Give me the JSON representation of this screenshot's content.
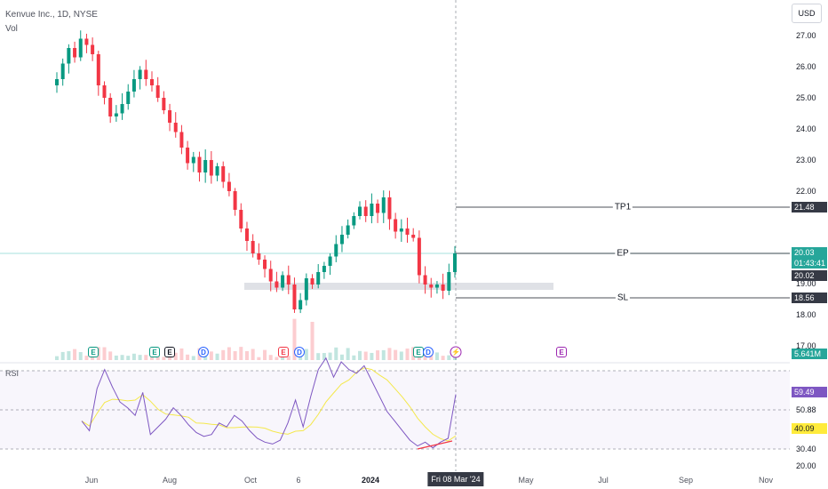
{
  "header": {
    "symbol": "Kenvue Inc., 1D, NYSE",
    "volume_label": "Vol",
    "currency": "USD"
  },
  "price_scale": {
    "ticks": [
      "27.00",
      "26.00",
      "25.00",
      "24.00",
      "23.00",
      "22.00",
      "19.00",
      "18.00",
      "17.00"
    ],
    "tp_tag": "21.48",
    "ep_tag": "20.03",
    "countdown": "01:43:41",
    "close_tag": "20.02",
    "sl_tag": "18.56",
    "vol_tag": "5.641M"
  },
  "drawings": {
    "tp_label": "TP1",
    "ep_label": "EP",
    "sl_label": "SL"
  },
  "rsi": {
    "label": "RSI",
    "ticks": [
      "50.88",
      "30.40",
      "20.00"
    ],
    "value_tag": "59.49",
    "ma_tag": "40.09"
  },
  "time_axis": {
    "labels": [
      "Jun",
      "Aug",
      "Oct",
      "6",
      "2024",
      "May",
      "Jul",
      "Sep",
      "Nov"
    ],
    "cursor_date": "Fri 08 Mar '24"
  },
  "events": [
    "E",
    "E",
    "E",
    "D",
    "E",
    "D",
    "E",
    "E",
    "E"
  ],
  "colors": {
    "up": "#089981",
    "down": "#f23645",
    "rsi": "#7e57c2",
    "rsi_ma": "#f4e84c",
    "accent": "#2962ff"
  },
  "chart_data": {
    "type": "candlestick",
    "title": "Kenvue Inc., 1D, NYSE",
    "ylim": [
      17,
      27.3
    ],
    "close": [
      25.6,
      26.1,
      26.6,
      26.3,
      26.9,
      26.7,
      26.4,
      25.4,
      25.0,
      24.4,
      24.5,
      24.8,
      25.2,
      25.6,
      25.9,
      25.6,
      25.4,
      25.0,
      24.6,
      24.2,
      23.9,
      23.4,
      22.9,
      23.1,
      22.6,
      23.0,
      22.5,
      22.8,
      22.3,
      22.0,
      21.4,
      20.8,
      20.4,
      20.0,
      19.8,
      19.5,
      19.1,
      18.9,
      19.3,
      19.0,
      18.2,
      18.5,
      19.2,
      19.0,
      19.4,
      19.6,
      19.9,
      20.3,
      20.6,
      20.9,
      21.2,
      21.5,
      21.2,
      21.6,
      21.3,
      21.8,
      21.1,
      20.7,
      20.8,
      20.6,
      20.5,
      19.3,
      19.0,
      18.9,
      19.0,
      18.8,
      19.4,
      20.0
    ],
    "rsi": [
      45,
      40,
      62,
      72,
      63,
      55,
      52,
      48,
      60,
      38,
      42,
      46,
      52,
      48,
      43,
      39,
      37,
      38,
      44,
      42,
      48,
      45,
      40,
      36,
      34,
      33,
      35,
      44,
      56,
      42,
      58,
      72,
      78,
      68,
      76,
      72,
      70,
      74,
      66,
      58,
      50,
      45,
      40,
      35,
      32,
      34,
      31,
      34,
      36,
      59
    ],
    "levels": {
      "TP1": 21.48,
      "EP": 20.03,
      "SL": 18.56
    },
    "rsi_ticks": [
      50.88,
      40.09,
      30.4,
      20.0
    ]
  }
}
